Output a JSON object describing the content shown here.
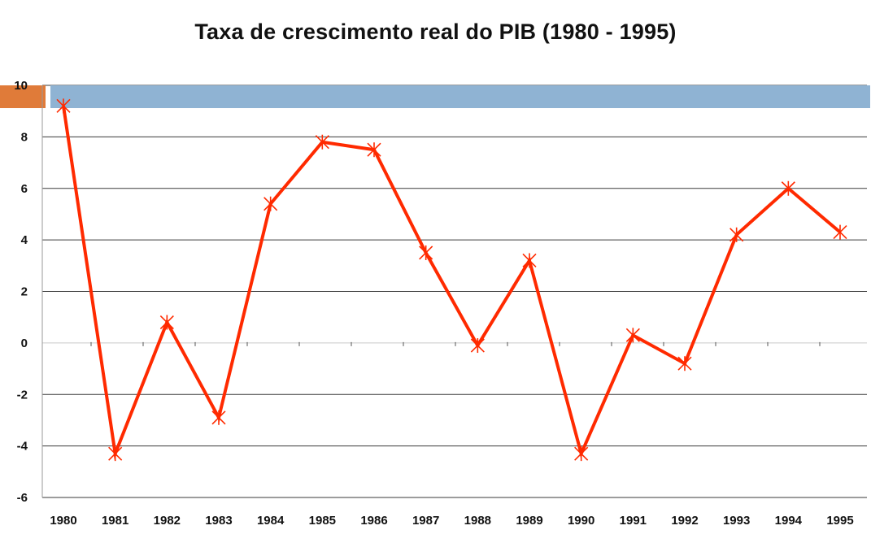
{
  "chart_data": {
    "type": "line",
    "title": "Taxa de crescimento real do PIB (1980 - 1995)",
    "xlabel": "",
    "ylabel": "",
    "categories": [
      "1980",
      "1981",
      "1982",
      "1983",
      "1984",
      "1985",
      "1986",
      "1987",
      "1988",
      "1989",
      "1990",
      "1991",
      "1992",
      "1993",
      "1994",
      "1995"
    ],
    "series": [
      {
        "values": [
          9.2,
          -4.3,
          0.8,
          -2.9,
          5.4,
          7.8,
          7.5,
          3.5,
          -0.1,
          3.2,
          -4.3,
          0.3,
          -0.8,
          4.2,
          6.0,
          4.3
        ]
      }
    ],
    "ylim": [
      -6,
      10
    ],
    "yticks": [
      10,
      8,
      6,
      4,
      2,
      0,
      -2,
      -4,
      -6
    ],
    "grid": true,
    "line_color": "#ff2a00",
    "marker": "asterisk",
    "plot_background": "#ffffff",
    "band_color": "#8fb3d3",
    "band_accent_color": "#e07b39"
  }
}
